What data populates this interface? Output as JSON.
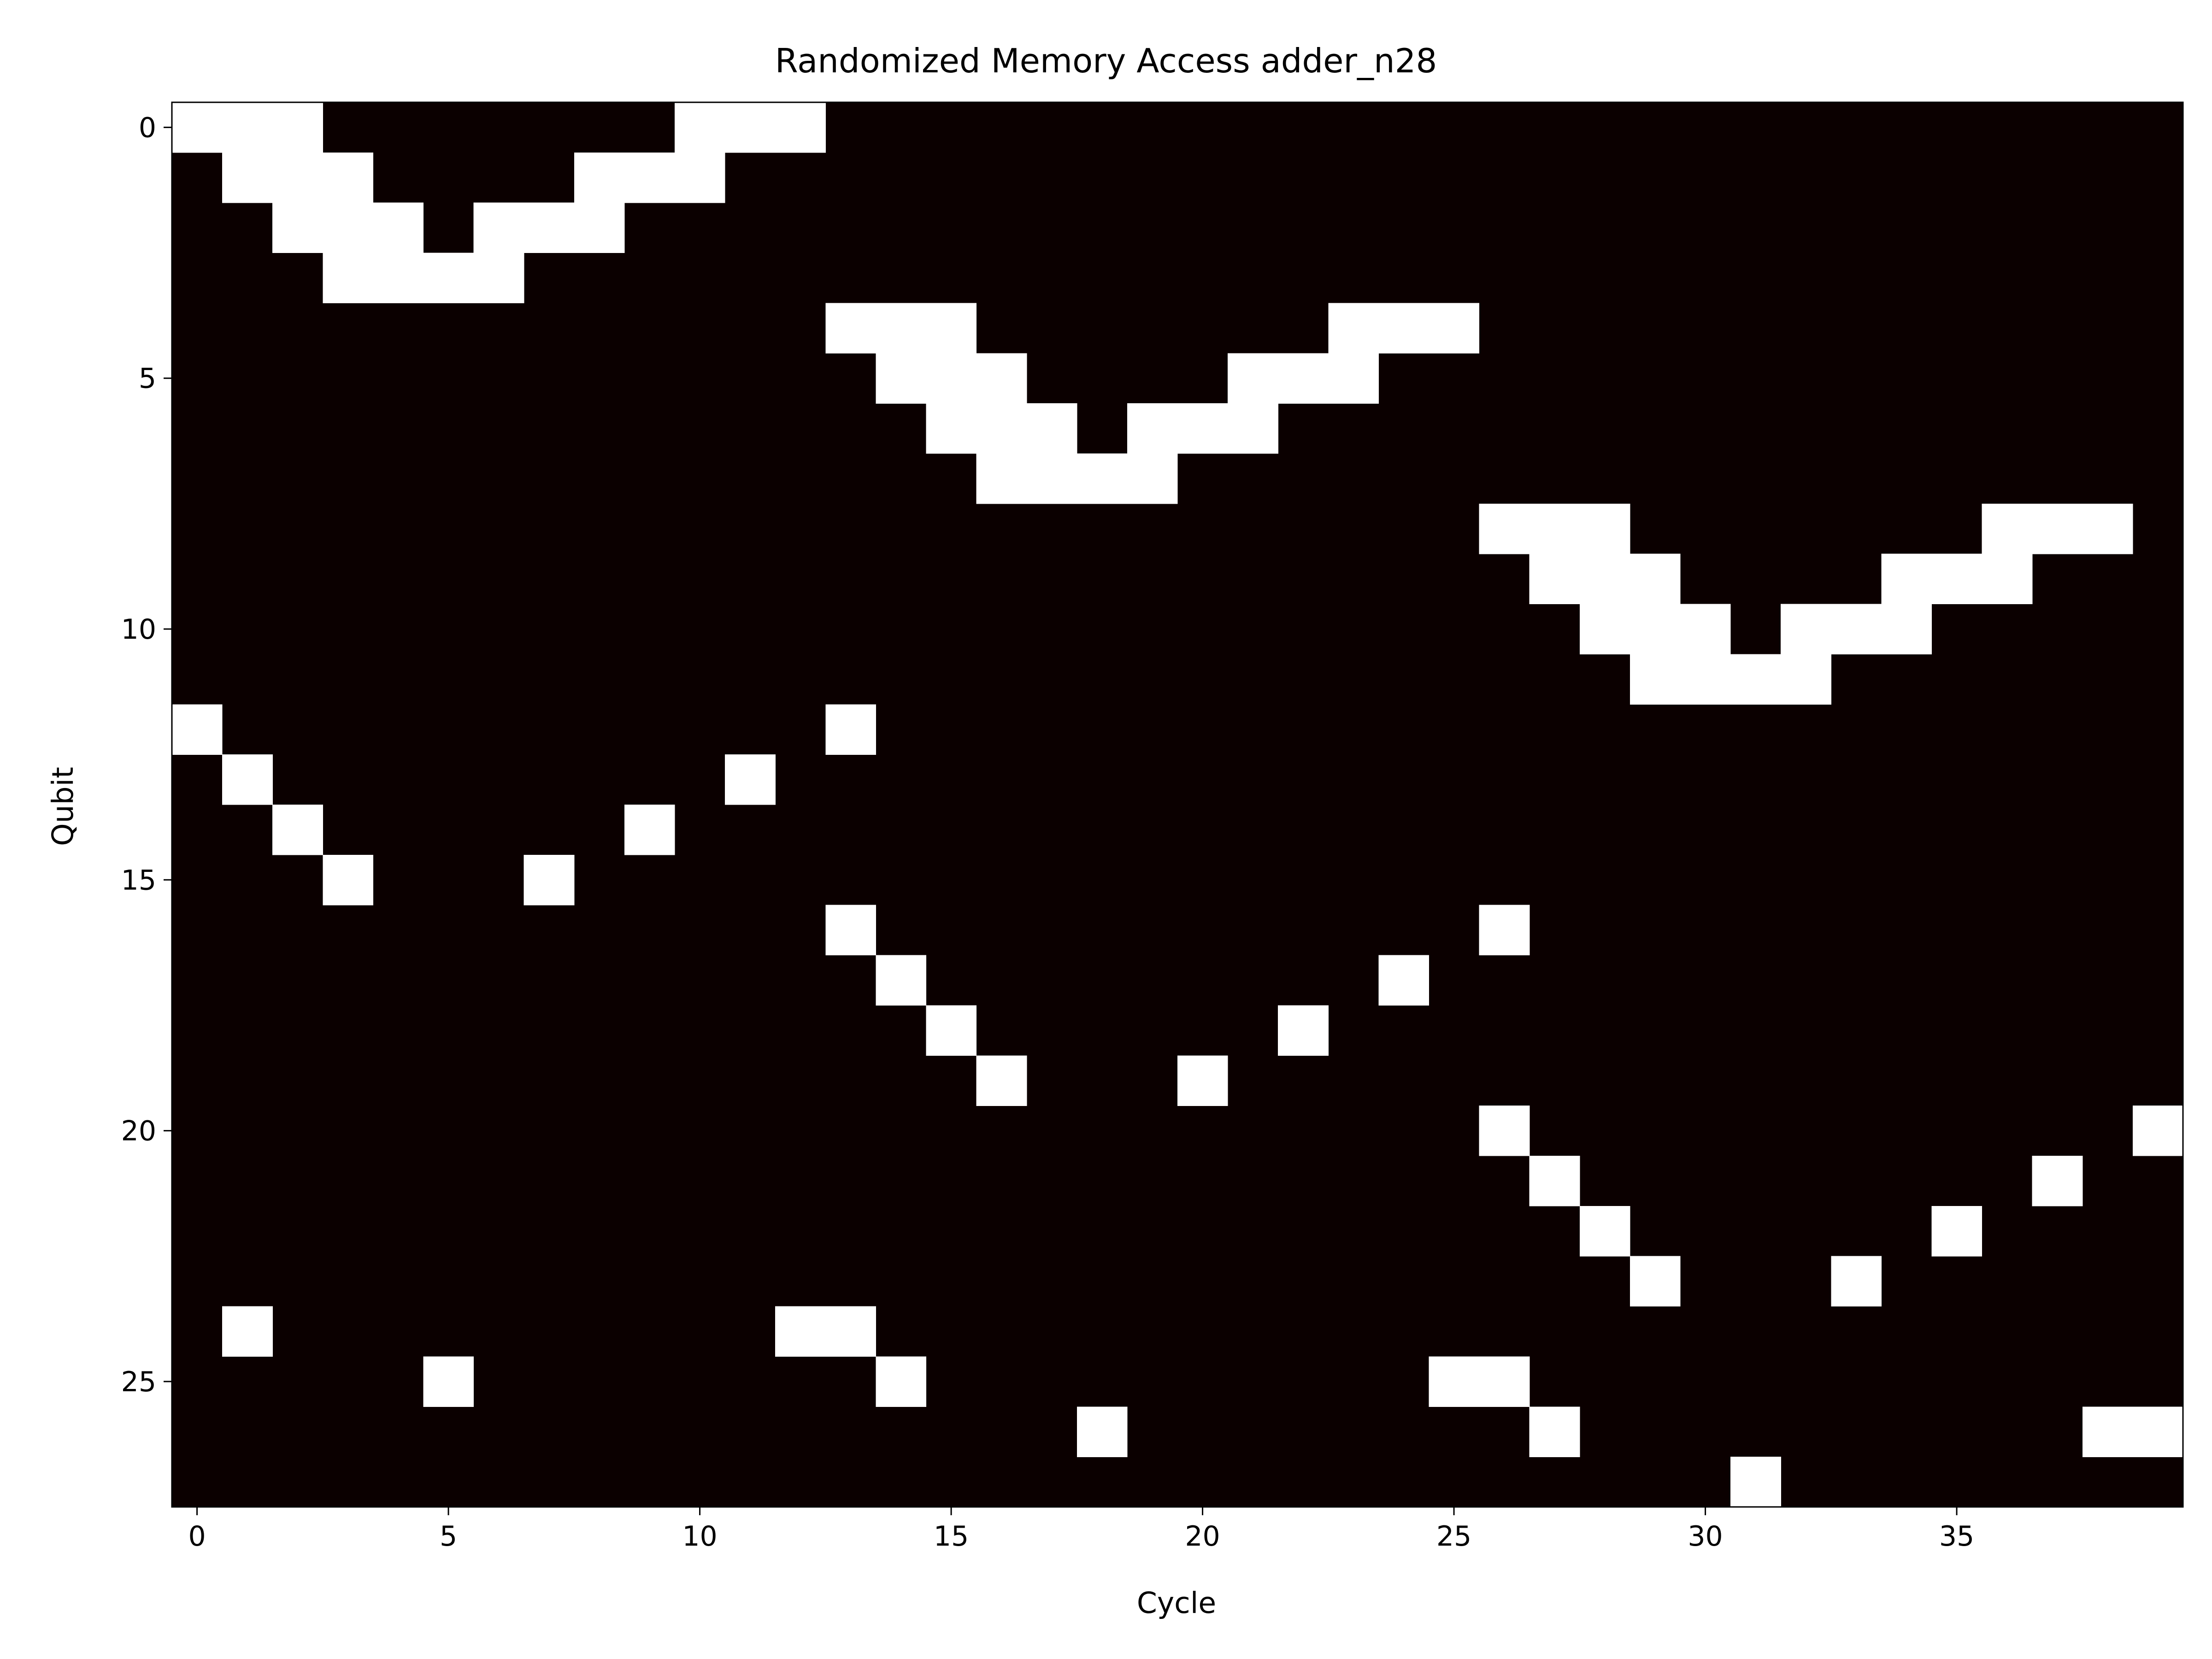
{
  "chart_data": {
    "type": "heatmap",
    "title": "Randomized Memory Access adder_n28",
    "xlabel": "Cycle",
    "ylabel": "Qubit",
    "x_ticks": [
      0,
      5,
      10,
      15,
      20,
      25,
      30,
      35
    ],
    "y_ticks": [
      0,
      5,
      10,
      15,
      20,
      25
    ],
    "xlim": [
      -0.5,
      39.5
    ],
    "ylim": [
      27.5,
      -0.5
    ],
    "n_cycles": 40,
    "n_qubits": 28,
    "colormap": {
      "low": "#0b0000",
      "high": "#ffffff"
    },
    "grid": false,
    "legend": "none",
    "active_cells": [
      [
        0,
        0
      ],
      [
        1,
        0
      ],
      [
        2,
        0
      ],
      [
        10,
        0
      ],
      [
        11,
        0
      ],
      [
        12,
        0
      ],
      [
        1,
        1
      ],
      [
        2,
        1
      ],
      [
        3,
        1
      ],
      [
        8,
        1
      ],
      [
        9,
        1
      ],
      [
        10,
        1
      ],
      [
        2,
        2
      ],
      [
        3,
        2
      ],
      [
        4,
        2
      ],
      [
        6,
        2
      ],
      [
        7,
        2
      ],
      [
        8,
        2
      ],
      [
        3,
        3
      ],
      [
        4,
        3
      ],
      [
        5,
        3
      ],
      [
        6,
        3
      ],
      [
        13,
        4
      ],
      [
        14,
        4
      ],
      [
        15,
        4
      ],
      [
        23,
        4
      ],
      [
        24,
        4
      ],
      [
        25,
        4
      ],
      [
        14,
        5
      ],
      [
        15,
        5
      ],
      [
        16,
        5
      ],
      [
        21,
        5
      ],
      [
        22,
        5
      ],
      [
        23,
        5
      ],
      [
        15,
        6
      ],
      [
        16,
        6
      ],
      [
        17,
        6
      ],
      [
        19,
        6
      ],
      [
        20,
        6
      ],
      [
        21,
        6
      ],
      [
        16,
        7
      ],
      [
        17,
        7
      ],
      [
        18,
        7
      ],
      [
        19,
        7
      ],
      [
        26,
        8
      ],
      [
        27,
        8
      ],
      [
        28,
        8
      ],
      [
        36,
        8
      ],
      [
        37,
        8
      ],
      [
        38,
        8
      ],
      [
        27,
        9
      ],
      [
        28,
        9
      ],
      [
        29,
        9
      ],
      [
        34,
        9
      ],
      [
        35,
        9
      ],
      [
        36,
        9
      ],
      [
        28,
        10
      ],
      [
        29,
        10
      ],
      [
        30,
        10
      ],
      [
        32,
        10
      ],
      [
        33,
        10
      ],
      [
        34,
        10
      ],
      [
        29,
        11
      ],
      [
        30,
        11
      ],
      [
        31,
        11
      ],
      [
        32,
        11
      ],
      [
        0,
        12
      ],
      [
        13,
        12
      ],
      [
        1,
        13
      ],
      [
        11,
        13
      ],
      [
        2,
        14
      ],
      [
        9,
        14
      ],
      [
        3,
        15
      ],
      [
        7,
        15
      ],
      [
        13,
        16
      ],
      [
        26,
        16
      ],
      [
        14,
        17
      ],
      [
        24,
        17
      ],
      [
        15,
        18
      ],
      [
        22,
        18
      ],
      [
        16,
        19
      ],
      [
        20,
        19
      ],
      [
        26,
        20
      ],
      [
        39,
        20
      ],
      [
        27,
        21
      ],
      [
        37,
        21
      ],
      [
        28,
        22
      ],
      [
        35,
        22
      ],
      [
        29,
        23
      ],
      [
        33,
        23
      ],
      [
        1,
        24
      ],
      [
        12,
        24
      ],
      [
        13,
        24
      ],
      [
        5,
        25
      ],
      [
        14,
        25
      ],
      [
        25,
        25
      ],
      [
        26,
        25
      ],
      [
        18,
        26
      ],
      [
        27,
        26
      ],
      [
        38,
        26
      ],
      [
        39,
        26
      ],
      [
        31,
        27
      ]
    ]
  }
}
